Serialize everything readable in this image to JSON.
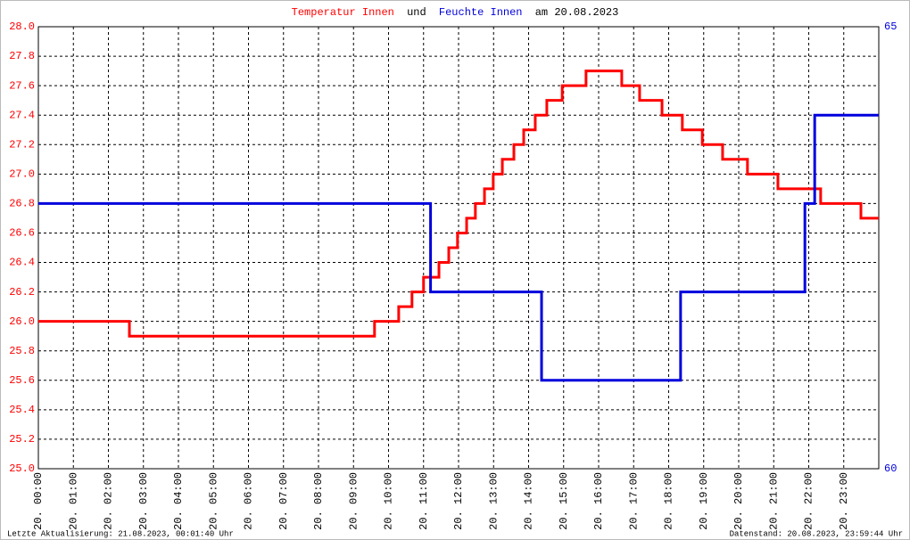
{
  "chart_data": {
    "type": "line",
    "title_parts": [
      "Temperatur Innen",
      "und",
      "Feuchte Innen",
      "am 20.08.2023"
    ],
    "footer_left": "Letzte Aktualisierung: 21.08.2023, 00:01:40 Uhr",
    "footer_right": "Datenstand: 20.08.2023, 23:59:44 Uhr",
    "xlim": [
      0,
      24
    ],
    "xticks": [
      {
        "value": 0,
        "label": "20. 00:00"
      },
      {
        "value": 1,
        "label": "20. 01:00"
      },
      {
        "value": 2,
        "label": "20. 02:00"
      },
      {
        "value": 3,
        "label": "20. 03:00"
      },
      {
        "value": 4,
        "label": "20. 04:00"
      },
      {
        "value": 5,
        "label": "20. 05:00"
      },
      {
        "value": 6,
        "label": "20. 06:00"
      },
      {
        "value": 7,
        "label": "20. 07:00"
      },
      {
        "value": 8,
        "label": "20. 08:00"
      },
      {
        "value": 9,
        "label": "20. 09:00"
      },
      {
        "value": 10,
        "label": "20. 10:00"
      },
      {
        "value": 11,
        "label": "20. 11:00"
      },
      {
        "value": 12,
        "label": "20. 12:00"
      },
      {
        "value": 13,
        "label": "20. 13:00"
      },
      {
        "value": 14,
        "label": "20. 14:00"
      },
      {
        "value": 15,
        "label": "20. 15:00"
      },
      {
        "value": 16,
        "label": "20. 16:00"
      },
      {
        "value": 17,
        "label": "20. 17:00"
      },
      {
        "value": 18,
        "label": "20. 18:00"
      },
      {
        "value": 19,
        "label": "20. 19:00"
      },
      {
        "value": 20,
        "label": "20. 20:00"
      },
      {
        "value": 21,
        "label": "20. 21:00"
      },
      {
        "value": 22,
        "label": "20. 22:00"
      },
      {
        "value": 23,
        "label": "20. 23:00"
      }
    ],
    "ylim": [
      25,
      28
    ],
    "yticks": [
      {
        "value": 25,
        "label": "25.0"
      },
      25.2,
      25.4,
      25.6,
      25.8,
      {
        "value": 26,
        "label": "26.0"
      },
      26.2,
      26.4,
      26.6,
      26.8,
      {
        "value": 27,
        "label": "27.0"
      },
      27.2,
      27.4,
      27.6,
      27.8,
      {
        "value": 28,
        "label": "28.0"
      }
    ],
    "y2lim": [
      60,
      65
    ],
    "y2ticks": [
      60,
      65
    ],
    "grid": true,
    "series": [
      {
        "name": "Temperatur Innen",
        "color": "#ff0000",
        "x": [
          0,
          2.6,
          2.6,
          9.6,
          9.6,
          10.29,
          10.29,
          10.67,
          10.67,
          11.0,
          11.0,
          11.44,
          11.44,
          11.72,
          11.72,
          11.97,
          11.97,
          12.23,
          12.23,
          12.48,
          12.48,
          12.74,
          12.74,
          12.99,
          12.99,
          13.25,
          13.25,
          13.58,
          13.58,
          13.86,
          13.86,
          14.19,
          14.19,
          14.52,
          14.52,
          14.96,
          14.96,
          15.64,
          15.64,
          16.66,
          16.66,
          17.17,
          17.17,
          17.81,
          17.81,
          18.39,
          18.39,
          18.96,
          18.96,
          19.54,
          19.54,
          20.25,
          20.25,
          21.12,
          21.12,
          22.34,
          22.34,
          23.49,
          23.49,
          24
        ],
        "values": [
          26.0,
          26.0,
          25.9,
          25.9,
          26.0,
          26.0,
          26.1,
          26.1,
          26.2,
          26.2,
          26.3,
          26.3,
          26.4,
          26.4,
          26.5,
          26.5,
          26.6,
          26.6,
          26.7,
          26.7,
          26.8,
          26.8,
          26.9,
          26.9,
          27.0,
          27.0,
          27.1,
          27.1,
          27.2,
          27.2,
          27.3,
          27.3,
          27.4,
          27.4,
          27.5,
          27.5,
          27.6,
          27.6,
          27.7,
          27.7,
          27.6,
          27.6,
          27.5,
          27.5,
          27.4,
          27.4,
          27.3,
          27.3,
          27.2,
          27.2,
          27.1,
          27.1,
          27.0,
          27.0,
          26.9,
          26.9,
          26.8,
          26.8,
          26.7,
          26.7
        ]
      },
      {
        "name": "Feuchte Innen",
        "color": "#0000dd",
        "axis": "y2",
        "x": [
          0,
          11.2,
          11.2,
          14.37,
          14.37,
          18.34,
          18.34,
          21.89,
          21.89,
          22.17,
          22.17,
          24
        ],
        "values": [
          63,
          63,
          62,
          62,
          61,
          61,
          62,
          62,
          63,
          63,
          64,
          64
        ]
      }
    ]
  }
}
